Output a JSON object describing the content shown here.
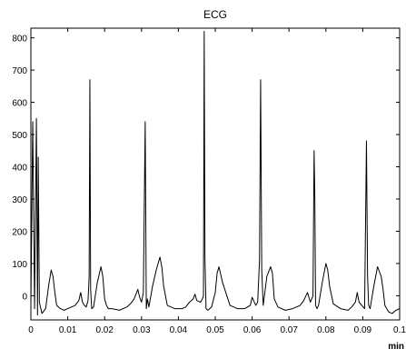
{
  "chart_data": {
    "type": "line",
    "title": "ECG",
    "xlabel": "min",
    "ylabel": "",
    "xlim": [
      0,
      0.1
    ],
    "ylim": [
      -75,
      830
    ],
    "grid": false,
    "x_ticks": [
      0,
      0.01,
      0.02,
      0.03,
      0.04,
      0.05,
      0.06,
      0.07,
      0.08,
      0.09,
      0.1
    ],
    "x_tick_labels": [
      "0",
      "0.01",
      "0.02",
      "0.03",
      "0.04",
      "0.05",
      "0.06",
      "0.07",
      "0.08",
      "0.09",
      "0.1"
    ],
    "y_ticks": [
      0,
      100,
      200,
      300,
      400,
      500,
      600,
      700,
      800
    ],
    "y_tick_labels": [
      "0",
      "100",
      "200",
      "300",
      "400",
      "500",
      "600",
      "700",
      "800"
    ],
    "series": [
      {
        "color": "#000000",
        "x": [
          0,
          0.0005,
          0.001,
          0.0015,
          0.0018,
          0.002,
          0.0023,
          0.003,
          0.004,
          0.0048,
          0.0055,
          0.006,
          0.0065,
          0.007,
          0.008,
          0.009,
          0.01,
          0.011,
          0.012,
          0.013,
          0.0135,
          0.014,
          0.0145,
          0.015,
          0.0155,
          0.0158,
          0.016,
          0.0162,
          0.0165,
          0.017,
          0.018,
          0.019,
          0.0195,
          0.02,
          0.0205,
          0.021,
          0.022,
          0.024,
          0.026,
          0.027,
          0.028,
          0.029,
          0.0295,
          0.03,
          0.0305,
          0.031,
          0.0313,
          0.0316,
          0.032,
          0.033,
          0.034,
          0.035,
          0.0355,
          0.036,
          0.037,
          0.039,
          0.041,
          0.042,
          0.043,
          0.044,
          0.0445,
          0.045,
          0.046,
          0.0465,
          0.0468,
          0.047,
          0.0472,
          0.0475,
          0.048,
          0.049,
          0.05,
          0.0505,
          0.051,
          0.052,
          0.054,
          0.056,
          0.058,
          0.0595,
          0.06,
          0.061,
          0.0615,
          0.062,
          0.0623,
          0.0626,
          0.063,
          0.064,
          0.065,
          0.0655,
          0.066,
          0.067,
          0.069,
          0.071,
          0.073,
          0.074,
          0.075,
          0.0758,
          0.0765,
          0.0768,
          0.077,
          0.0772,
          0.0776,
          0.078,
          0.079,
          0.08,
          0.0805,
          0.081,
          0.082,
          0.084,
          0.086,
          0.087,
          0.088,
          0.0885,
          0.089,
          0.0905,
          0.091,
          0.0913,
          0.0916,
          0.092,
          0.093,
          0.094,
          0.095,
          0.0955,
          0.096,
          0.097,
          0.098,
          0.099,
          0.1
        ],
        "y": [
          -30,
          540,
          -40,
          550,
          -60,
          430,
          -20,
          -55,
          -40,
          30,
          80,
          60,
          10,
          -30,
          -40,
          -45,
          -40,
          -35,
          -30,
          -15,
          10,
          -20,
          -30,
          -35,
          -15,
          60,
          670,
          20,
          -40,
          -35,
          40,
          90,
          60,
          -10,
          -30,
          -40,
          -40,
          -45,
          -35,
          -25,
          -10,
          20,
          -5,
          -20,
          10,
          540,
          -40,
          -10,
          -35,
          30,
          80,
          120,
          90,
          30,
          -30,
          -40,
          -40,
          -35,
          -20,
          -10,
          5,
          -15,
          -20,
          -10,
          0,
          820,
          120,
          -40,
          -45,
          -35,
          10,
          70,
          90,
          40,
          -30,
          -40,
          -40,
          -30,
          -5,
          -30,
          -20,
          110,
          670,
          80,
          -30,
          60,
          90,
          70,
          -10,
          -35,
          -45,
          -40,
          -30,
          -15,
          10,
          -20,
          0,
          450,
          310,
          -30,
          -40,
          -30,
          40,
          100,
          80,
          30,
          -25,
          -40,
          -45,
          -35,
          -20,
          10,
          -20,
          -40,
          480,
          60,
          -30,
          -40,
          30,
          90,
          60,
          20,
          -30,
          -50,
          -55,
          -45,
          -40
        ]
      }
    ]
  }
}
